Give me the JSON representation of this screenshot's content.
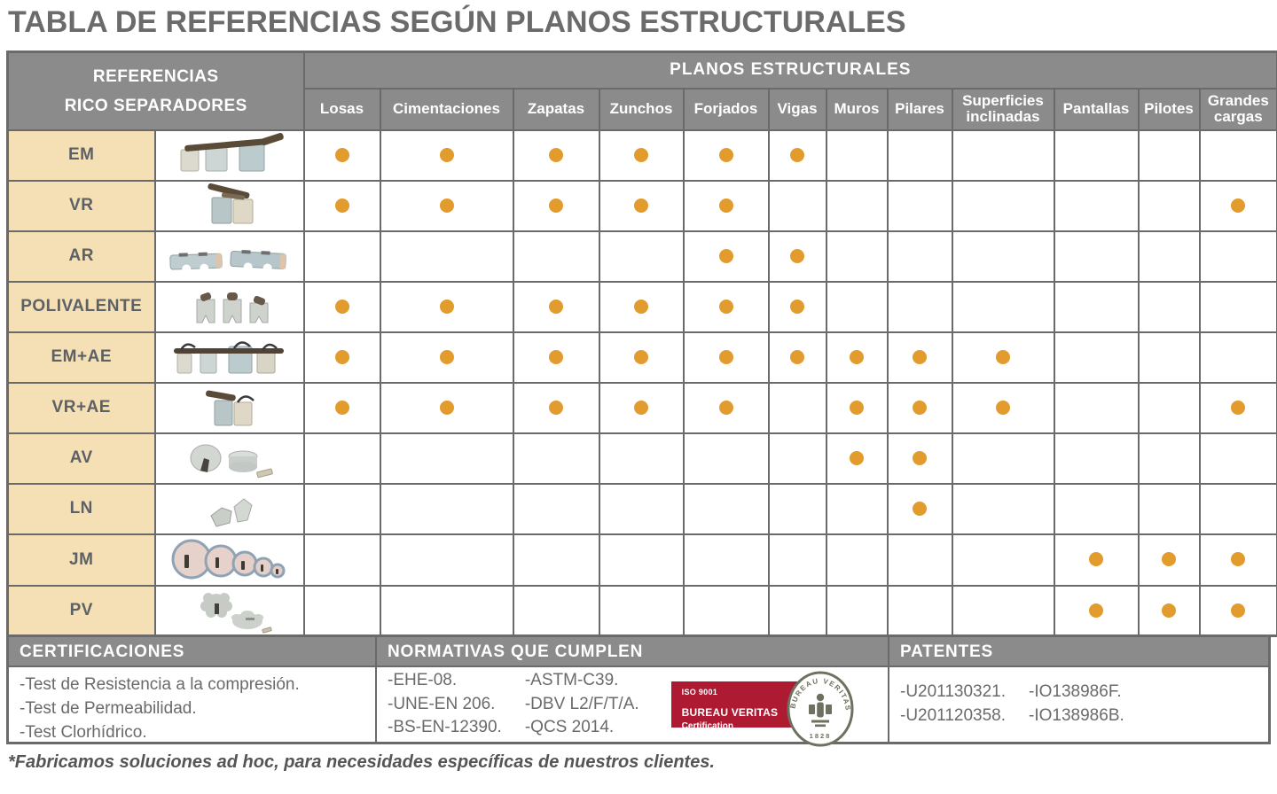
{
  "title": "TABLA DE REFERENCIAS SEGÚN PLANOS ESTRUCTURALES",
  "table": {
    "corner_line1": "REFERENCIAS",
    "corner_line2": "RICO SEPARADORES",
    "group_header": "PLANOS ESTRUCTURALES",
    "columns": [
      "Losas",
      "Cimentaciones",
      "Zapatas",
      "Zunchos",
      "Forjados",
      "Vigas",
      "Muros",
      "Pilares",
      "Superficies inclinadas",
      "Pantallas",
      "Pilotes",
      "Grandes cargas"
    ],
    "rows": [
      {
        "code": "EM",
        "dots": [
          1,
          1,
          1,
          1,
          1,
          1,
          0,
          0,
          0,
          0,
          0,
          0
        ]
      },
      {
        "code": "VR",
        "dots": [
          1,
          1,
          1,
          1,
          1,
          0,
          0,
          0,
          0,
          0,
          0,
          1
        ]
      },
      {
        "code": "AR",
        "dots": [
          0,
          0,
          0,
          0,
          1,
          1,
          0,
          0,
          0,
          0,
          0,
          0
        ]
      },
      {
        "code": "POLIVALENTE",
        "dots": [
          1,
          1,
          1,
          1,
          1,
          1,
          0,
          0,
          0,
          0,
          0,
          0
        ]
      },
      {
        "code": "EM+AE",
        "dots": [
          1,
          1,
          1,
          1,
          1,
          1,
          1,
          1,
          1,
          0,
          0,
          0
        ]
      },
      {
        "code": "VR+AE",
        "dots": [
          1,
          1,
          1,
          1,
          1,
          0,
          1,
          1,
          1,
          0,
          0,
          1
        ]
      },
      {
        "code": "AV",
        "dots": [
          0,
          0,
          0,
          0,
          0,
          0,
          1,
          1,
          0,
          0,
          0,
          0
        ]
      },
      {
        "code": "LN",
        "dots": [
          0,
          0,
          0,
          0,
          0,
          0,
          0,
          1,
          0,
          0,
          0,
          0
        ]
      },
      {
        "code": "JM",
        "dots": [
          0,
          0,
          0,
          0,
          0,
          0,
          0,
          0,
          0,
          1,
          1,
          1
        ]
      },
      {
        "code": "PV",
        "dots": [
          0,
          0,
          0,
          0,
          0,
          0,
          0,
          0,
          0,
          1,
          1,
          1
        ]
      }
    ]
  },
  "sections": {
    "certificaciones": {
      "title": "CERTIFICACIONES",
      "items": [
        "-Test de Resistencia a la compresión.",
        "-Test de Permeabilidad.",
        "-Test Clorhídrico."
      ]
    },
    "normativas": {
      "title": "NORMATIVAS QUE CUMPLEN",
      "col1": [
        "-EHE-08.",
        "-UNE-EN 206.",
        "-BS-EN-12390."
      ],
      "col2": [
        "-ASTM-C39.",
        "-DBV L2/F/T/A.",
        "-QCS 2014."
      ],
      "logo": {
        "iso": "ISO 9001",
        "brand": "BUREAU VERITAS",
        "sub": "Certification",
        "seal_arc": "BUREAU VERITAS",
        "seal_year": "1828"
      }
    },
    "patentes": {
      "title": "PATENTES",
      "col1": [
        "-U201130321.",
        "-U201120358."
      ],
      "col2": [
        "-IO138986F.",
        "-IO138986B."
      ]
    }
  },
  "footer_note": "*Fabricamos soluciones ad hoc, para necesidades específicas de nuestros clientes.",
  "colors": {
    "header_gray": "#8b8b8b",
    "grid_line": "#6a6a6a",
    "row_label_bg": "#f4e0b4",
    "accent_dot": "#e29b2d",
    "logo_red": "#ae1a32",
    "seal_olive": "#6f705f"
  }
}
